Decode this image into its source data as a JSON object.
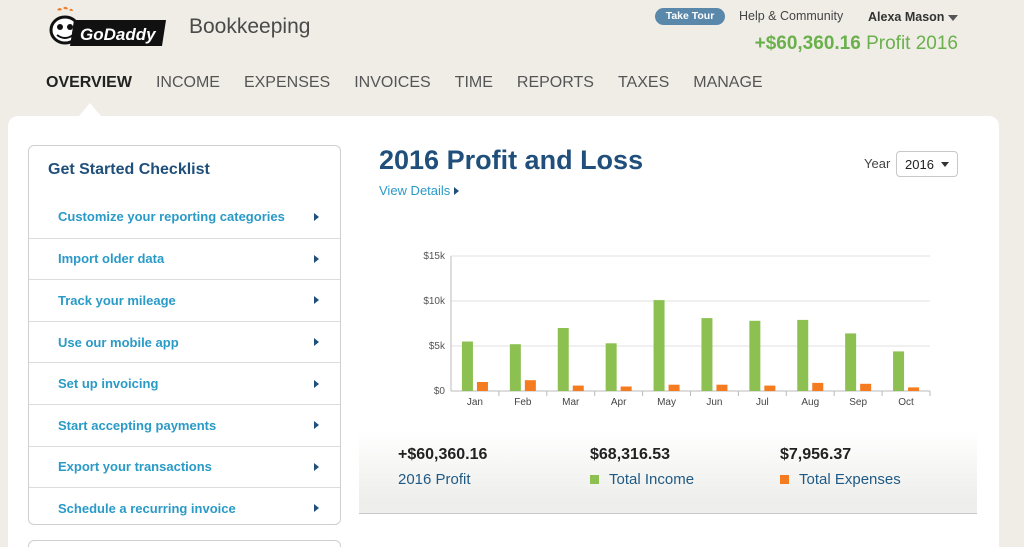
{
  "header": {
    "logo_text": "GoDaddy",
    "product_name": "Bookkeeping",
    "take_tour": "Take Tour",
    "help": "Help & Community",
    "user": "Alexa Mason",
    "profit_amount": "+$60,360.16",
    "profit_label": "Profit 2016"
  },
  "nav": {
    "tabs": [
      {
        "label": "OVERVIEW",
        "active": true
      },
      {
        "label": "INCOME"
      },
      {
        "label": "EXPENSES"
      },
      {
        "label": "INVOICES"
      },
      {
        "label": "TIME"
      },
      {
        "label": "REPORTS"
      },
      {
        "label": "TAXES"
      },
      {
        "label": "MANAGE"
      }
    ]
  },
  "checklist": {
    "title": "Get Started Checklist",
    "items": [
      {
        "label": "Customize your reporting categories"
      },
      {
        "label": "Import older data"
      },
      {
        "label": "Track your mileage"
      },
      {
        "label": "Use our mobile app"
      },
      {
        "label": "Set up invoicing"
      },
      {
        "label": "Start accepting payments"
      },
      {
        "label": "Export your transactions"
      },
      {
        "label": "Schedule a recurring invoice"
      }
    ]
  },
  "pl": {
    "title": "2016 Profit and Loss",
    "view_details": "View Details",
    "year_label": "Year",
    "year_value": "2016"
  },
  "totals": {
    "profit": {
      "value": "+$60,360.16",
      "label": "2016 Profit"
    },
    "income": {
      "value": "$68,316.53",
      "label": "Total Income"
    },
    "expenses": {
      "value": "$7,956.37",
      "label": "Total Expenses"
    }
  },
  "colors": {
    "income": "#8cc152",
    "expense": "#f47b20",
    "accent_green": "#6ab04c",
    "title_blue": "#1f4f7a",
    "link_blue": "#2a9ac7"
  },
  "chart_data": {
    "type": "bar",
    "categories": [
      "Jan",
      "Feb",
      "Mar",
      "Apr",
      "May",
      "Jun",
      "Jul",
      "Aug",
      "Sep",
      "Oct"
    ],
    "series": [
      {
        "values": [
          5500,
          5200,
          7000,
          5300,
          10100,
          8100,
          7800,
          7900,
          6400,
          4400
        ]
      },
      {
        "values": [
          1000,
          1200,
          600,
          500,
          700,
          700,
          600,
          900,
          800,
          400
        ]
      }
    ],
    "ylim": [
      0,
      15000
    ],
    "yticks": [
      "$0",
      "$5k",
      "$10k",
      "$15k"
    ],
    "ytick_values": [
      0,
      5000,
      10000,
      15000
    ],
    "grid": true
  }
}
